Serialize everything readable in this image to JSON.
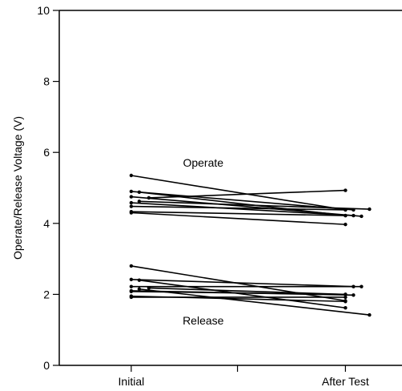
{
  "chart_data": {
    "type": "line",
    "title": "",
    "ylabel": "Operate/Release Voltage (V)",
    "xlabel": "",
    "categories": [
      "Initial",
      "After Test"
    ],
    "ylim": [
      0,
      10
    ],
    "yticks": [
      0,
      2,
      4,
      6,
      8,
      10
    ],
    "grid": false,
    "line_color": "#000000",
    "annotations": [
      {
        "text": "Operate",
        "x": 0.42,
        "y": 5.6
      },
      {
        "text": "Release",
        "x": 0.42,
        "y": 1.15
      }
    ],
    "groups": [
      {
        "label": "Operate",
        "series": [
          {
            "values": [
              5.35,
              4.38
            ]
          },
          {
            "values": [
              4.9,
              4.38
            ]
          },
          {
            "values": [
              4.88,
              4.22
            ]
          },
          {
            "values": [
              4.75,
              4.2
            ]
          },
          {
            "values": [
              4.72,
              4.93
            ]
          },
          {
            "values": [
              4.62,
              4.4
            ]
          },
          {
            "values": [
              4.58,
              4.22
            ]
          },
          {
            "values": [
              4.48,
              4.38
            ]
          },
          {
            "values": [
              4.33,
              4.22
            ]
          },
          {
            "values": [
              4.3,
              3.97
            ]
          }
        ]
      },
      {
        "label": "Release",
        "series": [
          {
            "values": [
              2.8,
              1.82
            ]
          },
          {
            "values": [
              2.42,
              2.22
            ]
          },
          {
            "values": [
              2.4,
              1.62
            ]
          },
          {
            "values": [
              2.22,
              2.22
            ]
          },
          {
            "values": [
              2.18,
              2.0
            ]
          },
          {
            "values": [
              2.15,
              1.42
            ]
          },
          {
            "values": [
              2.1,
              1.98
            ]
          },
          {
            "values": [
              2.08,
              2.0
            ]
          },
          {
            "values": [
              1.95,
              1.8
            ]
          },
          {
            "values": [
              1.92,
              1.92
            ]
          }
        ]
      }
    ]
  }
}
